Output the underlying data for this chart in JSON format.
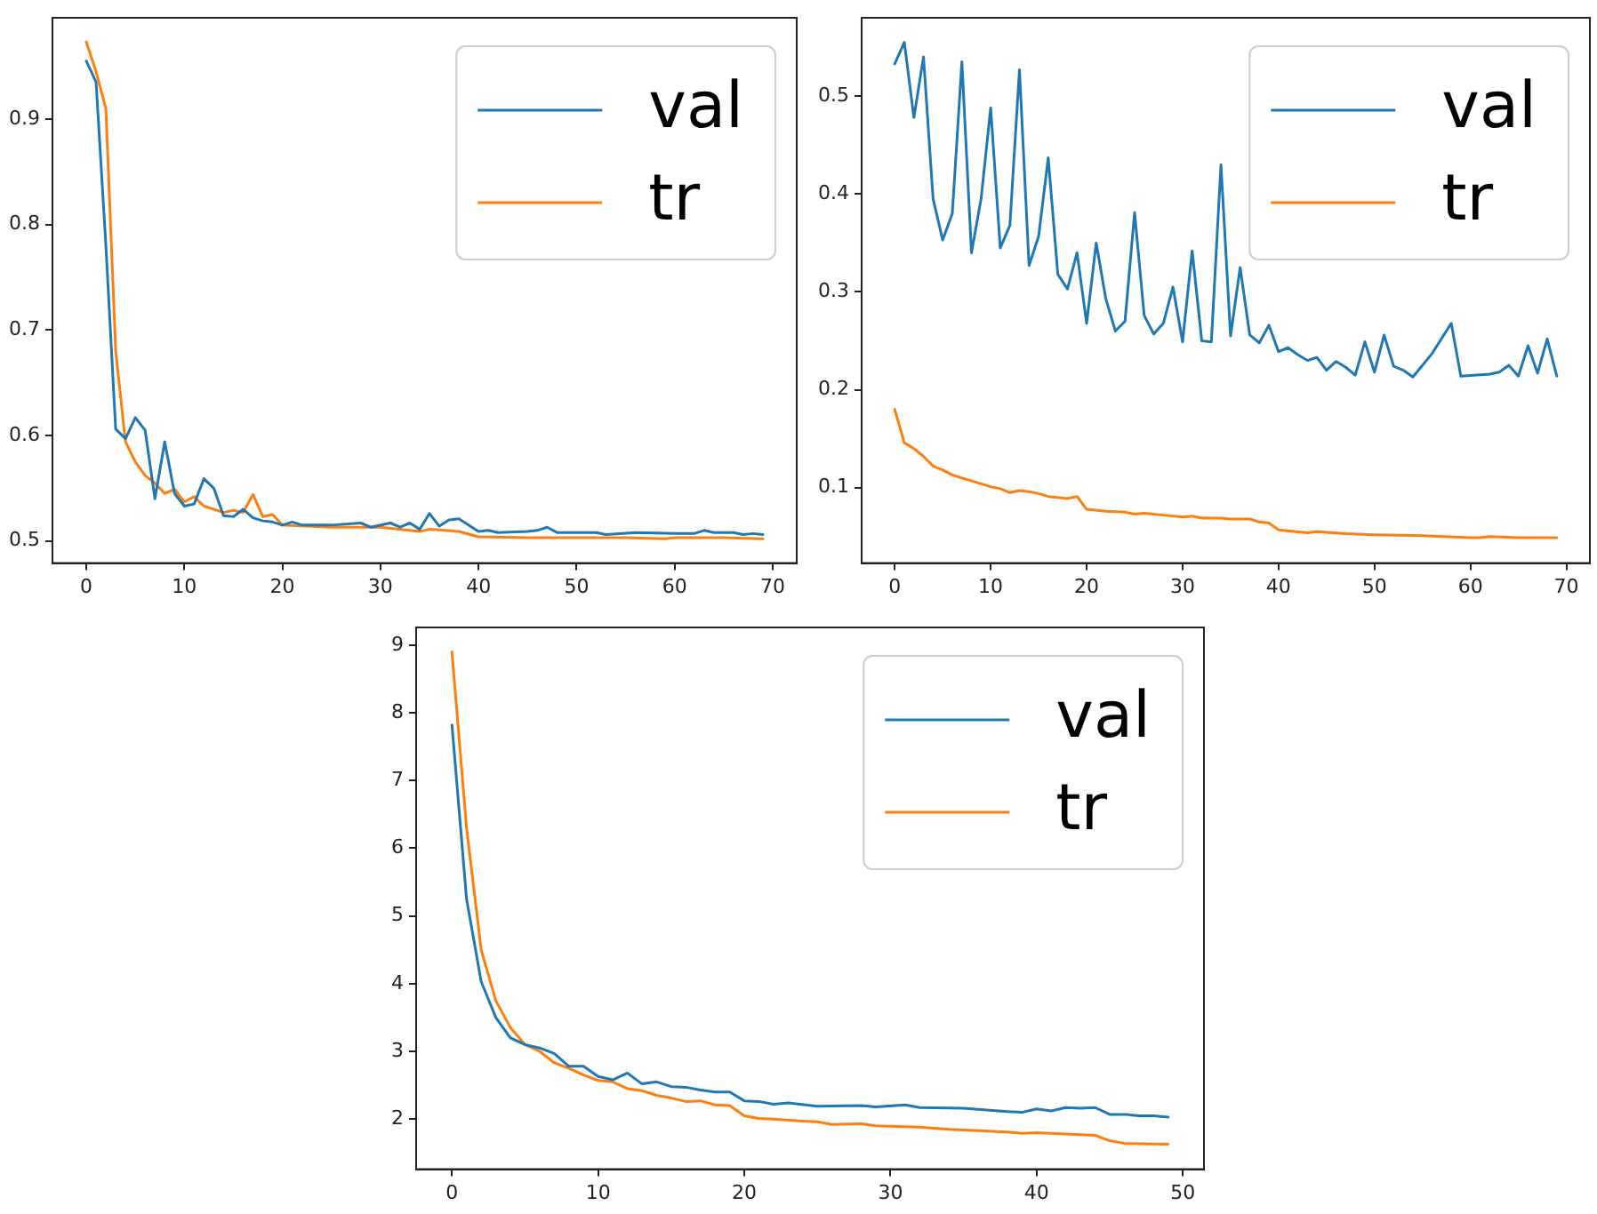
{
  "chart_data": [
    {
      "type": "line",
      "xlim": [
        -3.45,
        72.45
      ],
      "xticks": [
        0,
        10,
        20,
        30,
        40,
        50,
        60,
        70
      ],
      "ylim": [
        0.479,
        0.996
      ],
      "yticks": [
        0.5,
        0.6,
        0.7,
        0.8,
        0.9
      ],
      "grid": false,
      "legend": "top right",
      "line_style": "solid",
      "series": [
        {
          "name": "val",
          "color": "#1f77b4",
          "x": [
            0,
            1,
            2,
            3,
            4,
            5,
            6,
            7,
            8,
            9,
            10,
            11,
            12,
            13,
            14,
            15,
            16,
            17,
            18,
            19,
            20,
            21,
            22,
            25,
            28,
            29,
            31,
            32,
            33,
            34,
            35,
            36,
            37,
            38,
            40,
            41,
            42,
            45,
            46,
            47,
            48,
            52,
            53,
            56,
            60,
            62,
            63,
            64,
            66,
            67,
            68,
            69
          ],
          "values": [
            0.955,
            0.935,
            0.78,
            0.606,
            0.597,
            0.617,
            0.605,
            0.54,
            0.594,
            0.545,
            0.533,
            0.535,
            0.559,
            0.55,
            0.524,
            0.523,
            0.53,
            0.522,
            0.519,
            0.518,
            0.515,
            0.518,
            0.515,
            0.515,
            0.517,
            0.513,
            0.517,
            0.513,
            0.517,
            0.511,
            0.526,
            0.514,
            0.52,
            0.521,
            0.509,
            0.51,
            0.508,
            0.509,
            0.51,
            0.513,
            0.508,
            0.508,
            0.506,
            0.508,
            0.507,
            0.507,
            0.51,
            0.508,
            0.508,
            0.506,
            0.507,
            0.506
          ]
        },
        {
          "name": "tr",
          "color": "#ff7f0e",
          "x": [
            0,
            1,
            2,
            3,
            4,
            5,
            6,
            7,
            8,
            9,
            10,
            11,
            12,
            14,
            15,
            16,
            17,
            18,
            19,
            20,
            25,
            30,
            34,
            35,
            38,
            40,
            45,
            50,
            55,
            59,
            60,
            65,
            69
          ],
          "values": [
            0.973,
            0.945,
            0.91,
            0.68,
            0.594,
            0.575,
            0.562,
            0.555,
            0.545,
            0.549,
            0.537,
            0.542,
            0.533,
            0.527,
            0.529,
            0.527,
            0.544,
            0.523,
            0.525,
            0.515,
            0.513,
            0.513,
            0.509,
            0.511,
            0.509,
            0.504,
            0.503,
            0.503,
            0.503,
            0.502,
            0.503,
            0.503,
            0.502
          ]
        }
      ]
    },
    {
      "type": "line",
      "xlim": [
        -3.45,
        72.45
      ],
      "xticks": [
        0,
        10,
        20,
        30,
        40,
        50,
        60,
        70
      ],
      "ylim": [
        0.023,
        0.58
      ],
      "yticks": [
        0.1,
        0.2,
        0.3,
        0.4,
        0.5
      ],
      "grid": false,
      "legend": "top right",
      "line_style": "solid",
      "series": [
        {
          "name": "val",
          "color": "#1f77b4",
          "x": [
            0,
            1,
            2,
            3,
            4,
            5,
            6,
            7,
            8,
            9,
            10,
            11,
            12,
            13,
            14,
            15,
            16,
            17,
            18,
            19,
            20,
            21,
            22,
            23,
            24,
            25,
            26,
            27,
            28,
            29,
            30,
            31,
            32,
            33,
            34,
            35,
            36,
            37,
            38,
            39,
            40,
            41,
            42,
            43,
            44,
            45,
            46,
            47,
            48,
            49,
            50,
            51,
            52,
            53,
            54,
            56,
            58,
            59,
            62,
            63,
            64,
            65,
            66,
            67,
            68,
            69
          ],
          "values": [
            0.533,
            0.555,
            0.478,
            0.54,
            0.395,
            0.353,
            0.38,
            0.535,
            0.34,
            0.395,
            0.488,
            0.345,
            0.368,
            0.527,
            0.327,
            0.357,
            0.437,
            0.318,
            0.303,
            0.34,
            0.268,
            0.35,
            0.293,
            0.26,
            0.27,
            0.381,
            0.276,
            0.257,
            0.268,
            0.305,
            0.249,
            0.342,
            0.25,
            0.249,
            0.43,
            0.255,
            0.325,
            0.256,
            0.248,
            0.266,
            0.239,
            0.243,
            0.236,
            0.23,
            0.233,
            0.22,
            0.229,
            0.223,
            0.215,
            0.249,
            0.218,
            0.256,
            0.224,
            0.22,
            0.213,
            0.237,
            0.268,
            0.214,
            0.216,
            0.218,
            0.225,
            0.214,
            0.245,
            0.217,
            0.252,
            0.214
          ]
        },
        {
          "name": "tr",
          "color": "#ff7f0e",
          "x": [
            0,
            1,
            2,
            3,
            4,
            5,
            6,
            8,
            10,
            11,
            12,
            13,
            14,
            15,
            16,
            18,
            19,
            20,
            22,
            24,
            25,
            26,
            28,
            30,
            31,
            32,
            34,
            35,
            37,
            38,
            39,
            40,
            43,
            44,
            47,
            50,
            55,
            60,
            61,
            62,
            65,
            67,
            69
          ],
          "values": [
            0.18,
            0.146,
            0.14,
            0.132,
            0.122,
            0.118,
            0.113,
            0.107,
            0.101,
            0.099,
            0.095,
            0.097,
            0.096,
            0.094,
            0.091,
            0.089,
            0.091,
            0.078,
            0.076,
            0.075,
            0.073,
            0.074,
            0.072,
            0.07,
            0.071,
            0.069,
            0.069,
            0.068,
            0.068,
            0.065,
            0.064,
            0.057,
            0.054,
            0.055,
            0.053,
            0.052,
            0.051,
            0.049,
            0.049,
            0.05,
            0.049,
            0.049,
            0.049
          ]
        }
      ]
    },
    {
      "type": "line",
      "xlim": [
        -2.45,
        51.45
      ],
      "xticks": [
        0,
        10,
        20,
        30,
        40,
        50
      ],
      "ylim": [
        1.26,
        9.26
      ],
      "yticks": [
        2,
        3,
        4,
        5,
        6,
        7,
        8,
        9
      ],
      "grid": false,
      "legend": "top right",
      "line_style": "solid",
      "series": [
        {
          "name": "val",
          "color": "#1f77b4",
          "x": [
            0,
            1,
            2,
            3,
            4,
            5,
            6,
            7,
            8,
            9,
            10,
            11,
            12,
            13,
            14,
            15,
            16,
            17,
            18,
            19,
            20,
            21,
            22,
            23,
            25,
            28,
            29,
            31,
            32,
            35,
            38,
            39,
            40,
            41,
            42,
            43,
            44,
            45,
            46,
            47,
            48,
            49
          ],
          "values": [
            7.82,
            5.25,
            4.03,
            3.5,
            3.2,
            3.1,
            3.05,
            2.97,
            2.78,
            2.78,
            2.63,
            2.58,
            2.68,
            2.52,
            2.55,
            2.48,
            2.47,
            2.43,
            2.4,
            2.4,
            2.27,
            2.26,
            2.22,
            2.24,
            2.19,
            2.2,
            2.18,
            2.21,
            2.17,
            2.16,
            2.11,
            2.1,
            2.15,
            2.12,
            2.17,
            2.16,
            2.17,
            2.07,
            2.07,
            2.05,
            2.05,
            2.03
          ]
        },
        {
          "name": "tr",
          "color": "#ff7f0e",
          "x": [
            0,
            1,
            2,
            3,
            4,
            5,
            6,
            7,
            8,
            9,
            10,
            11,
            12,
            13,
            14,
            15,
            16,
            17,
            18,
            19,
            20,
            21,
            22,
            24,
            25,
            26,
            28,
            29,
            32,
            34,
            36,
            38,
            39,
            40,
            43,
            44,
            45,
            46,
            49
          ],
          "values": [
            8.9,
            6.3,
            4.5,
            3.75,
            3.35,
            3.1,
            3.0,
            2.83,
            2.75,
            2.65,
            2.57,
            2.55,
            2.45,
            2.42,
            2.35,
            2.31,
            2.26,
            2.27,
            2.21,
            2.2,
            2.05,
            2.01,
            2.0,
            1.97,
            1.96,
            1.92,
            1.93,
            1.9,
            1.88,
            1.85,
            1.83,
            1.81,
            1.79,
            1.8,
            1.77,
            1.76,
            1.68,
            1.64,
            1.63
          ]
        }
      ]
    }
  ]
}
